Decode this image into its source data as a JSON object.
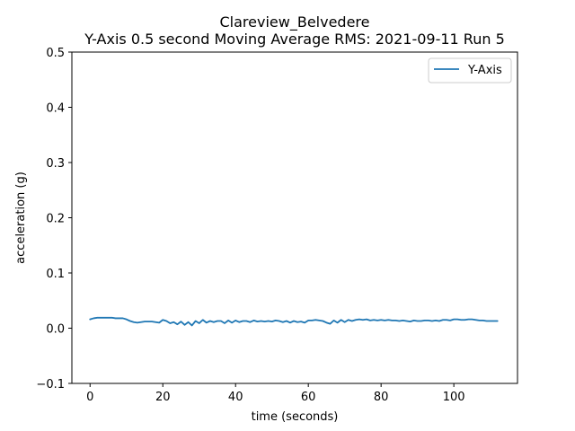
{
  "chart_data": {
    "type": "line",
    "title_line1": "Clareview_Belvedere",
    "title_line2": "Y-Axis 0.5 second Moving Average RMS: 2021-09-11 Run 5",
    "xlabel": "time (seconds)",
    "ylabel": "acceleration (g)",
    "xlim": [
      -5,
      117.5
    ],
    "ylim": [
      -0.1,
      0.5
    ],
    "xticks": [
      0,
      20,
      40,
      60,
      80,
      100
    ],
    "yticks": [
      -0.1,
      0.0,
      0.1,
      0.2,
      0.3,
      0.4,
      0.5
    ],
    "ytick_labels": [
      "−0.1",
      "0.0",
      "0.1",
      "0.2",
      "0.3",
      "0.4",
      "0.5"
    ],
    "grid": false,
    "legend_position": "top-right",
    "series": [
      {
        "name": "Y-Axis",
        "color": "#1f77b4",
        "x": [
          0,
          1,
          2,
          3,
          4,
          5,
          6,
          7,
          8,
          9,
          10,
          11,
          12,
          13,
          14,
          15,
          16,
          17,
          18,
          19,
          20,
          21,
          22,
          23,
          24,
          25,
          26,
          27,
          28,
          29,
          30,
          31,
          32,
          33,
          34,
          35,
          36,
          37,
          38,
          39,
          40,
          41,
          42,
          43,
          44,
          45,
          46,
          47,
          48,
          49,
          50,
          51,
          52,
          53,
          54,
          55,
          56,
          57,
          58,
          59,
          60,
          61,
          62,
          63,
          64,
          65,
          66,
          67,
          68,
          69,
          70,
          71,
          72,
          73,
          74,
          75,
          76,
          77,
          78,
          79,
          80,
          81,
          82,
          83,
          84,
          85,
          86,
          87,
          88,
          89,
          90,
          91,
          92,
          93,
          94,
          95,
          96,
          97,
          98,
          99,
          100,
          101,
          102,
          103,
          104,
          105,
          106,
          107,
          108,
          109,
          110,
          111,
          112
        ],
        "y": [
          0.016,
          0.018,
          0.019,
          0.019,
          0.019,
          0.019,
          0.019,
          0.018,
          0.018,
          0.018,
          0.016,
          0.013,
          0.011,
          0.01,
          0.011,
          0.012,
          0.012,
          0.012,
          0.011,
          0.01,
          0.015,
          0.013,
          0.009,
          0.011,
          0.007,
          0.012,
          0.006,
          0.011,
          0.005,
          0.013,
          0.009,
          0.015,
          0.01,
          0.013,
          0.011,
          0.013,
          0.013,
          0.009,
          0.014,
          0.01,
          0.014,
          0.011,
          0.013,
          0.013,
          0.011,
          0.014,
          0.012,
          0.013,
          0.012,
          0.013,
          0.012,
          0.014,
          0.013,
          0.011,
          0.013,
          0.01,
          0.013,
          0.011,
          0.012,
          0.01,
          0.014,
          0.014,
          0.015,
          0.014,
          0.013,
          0.01,
          0.008,
          0.014,
          0.01,
          0.015,
          0.011,
          0.015,
          0.013,
          0.015,
          0.016,
          0.015,
          0.016,
          0.014,
          0.015,
          0.014,
          0.015,
          0.014,
          0.015,
          0.014,
          0.014,
          0.013,
          0.014,
          0.013,
          0.012,
          0.014,
          0.013,
          0.013,
          0.014,
          0.014,
          0.013,
          0.014,
          0.013,
          0.015,
          0.015,
          0.014,
          0.016,
          0.016,
          0.015,
          0.015,
          0.016,
          0.016,
          0.015,
          0.014,
          0.014,
          0.013,
          0.013,
          0.013,
          0.013
        ]
      }
    ]
  }
}
